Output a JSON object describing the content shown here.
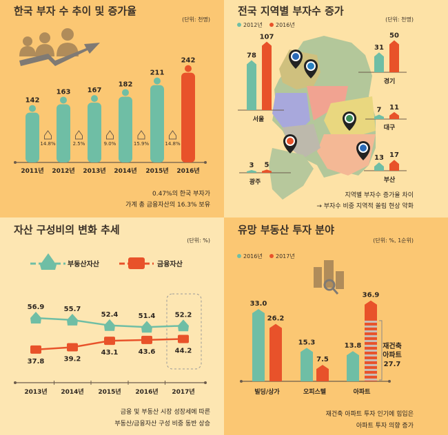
{
  "colors": {
    "teal": "#6fbea5",
    "red": "#e8522a",
    "bg1": "#fbc773",
    "bg2": "#fde2a6",
    "bg3": "#fde6b2",
    "bg4": "#fbc773",
    "axis": "#6b5b4b",
    "gray": "#7f7a74",
    "gold": "#b08c5a"
  },
  "chart_data": [
    {
      "type": "bar",
      "title": "한국 부자 수 추이 및 증가율",
      "unit": "(단위: 천명)",
      "categories": [
        "2011년",
        "2012년",
        "2013년",
        "2014년",
        "2015년",
        "2016년"
      ],
      "values": [
        142,
        163,
        167,
        182,
        211,
        242
      ],
      "highlight_index": 5,
      "growth_rates": [
        "14.8%",
        "2.5%",
        "9.0%",
        "15.9%",
        "14.8%"
      ],
      "notes": [
        "0.47%의 한국 부자가",
        "가계 총 금융자산의 16.3% 보유"
      ]
    },
    {
      "type": "bar",
      "title": "전국 지역별 부자수 증가",
      "unit": "(단위: 천명)",
      "legend": [
        "2012년",
        "2016년"
      ],
      "categories": [
        "서울",
        "경기",
        "대구",
        "부산",
        "광주"
      ],
      "series": [
        {
          "name": "2012년",
          "values": [
            78,
            31,
            7,
            13,
            3
          ]
        },
        {
          "name": "2016년",
          "values": [
            107,
            50,
            11,
            17,
            5
          ]
        }
      ],
      "notes": [
        "지역별 부자수 증가율 차이",
        "→ 부자수 비중 지역적 쏠림 현상 약화"
      ]
    },
    {
      "type": "line",
      "title": "자산 구성비의 변화 추세",
      "unit": "(단위: %)",
      "categories": [
        "2013년",
        "2014년",
        "2015년",
        "2016년",
        "2017년"
      ],
      "series": [
        {
          "name": "부동산자산",
          "values": [
            56.9,
            55.7,
            52.4,
            51.4,
            52.2
          ],
          "labels": [
            "56.9",
            "55.7",
            "52.4",
            "51.4",
            "52.2"
          ]
        },
        {
          "name": "금융자산",
          "values": [
            37.8,
            39.2,
            43.1,
            43.6,
            44.2
          ],
          "labels": [
            "37.8",
            "39.2",
            "43.1",
            "43.6",
            "44.2"
          ]
        }
      ],
      "notes": [
        "금융 및 부동산 시장 성장세에 따른",
        "부동산/금융자산 구성 비중 동반 상승"
      ]
    },
    {
      "type": "bar",
      "title": "유망 부동산 투자 분야",
      "unit": "(단위: %, 1순위)",
      "legend": [
        "2016년",
        "2017년"
      ],
      "categories": [
        "빌딩/상가",
        "오피스텔",
        "아파트"
      ],
      "series": [
        {
          "name": "2016년",
          "values": [
            33.0,
            15.3,
            13.8
          ],
          "labels": [
            "33.0",
            "15.3",
            "13.8"
          ]
        },
        {
          "name": "2017년",
          "values": [
            26.2,
            7.5,
            36.9
          ],
          "labels": [
            "26.2",
            "7.5",
            "36.9"
          ]
        }
      ],
      "annotation": {
        "lines": [
          "재건축",
          "아파트",
          "27.7"
        ],
        "value": 27.7
      },
      "notes": [
        "재건축 아파트 투자 인기에 힘입은",
        "아파트 투자 의향 증가"
      ]
    }
  ]
}
